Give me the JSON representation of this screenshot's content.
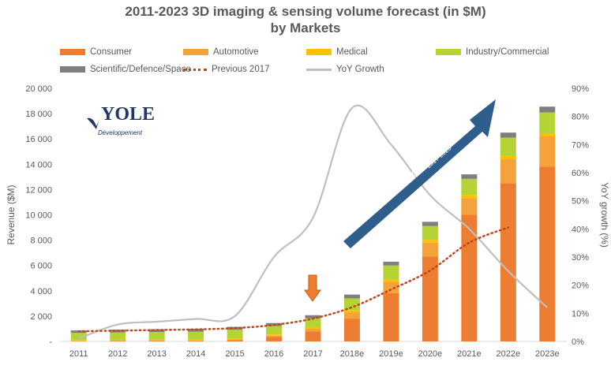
{
  "title_line1": "2011-2023 3D imaging & sensing volume forecast (in $M)",
  "title_line2": "by Markets",
  "logo": {
    "brand": "YOLE",
    "sub": "Développement"
  },
  "legend": [
    {
      "label": "Consumer",
      "color": "#ED7D31",
      "kind": "swatch"
    },
    {
      "label": "Automotive",
      "color": "#F4A23B",
      "kind": "swatch"
    },
    {
      "label": "Medical",
      "color": "#FFC000",
      "kind": "swatch"
    },
    {
      "label": "Industry/Commercial",
      "color": "#B5D334",
      "kind": "swatch"
    },
    {
      "label": "Scientific/Defence/Space",
      "color": "#7F7F7F",
      "kind": "swatch"
    },
    {
      "label": "Previous 2017",
      "color": "#C0461E",
      "kind": "dotted"
    },
    {
      "label": "YoY Growth",
      "color": "#BFBFBF",
      "kind": "line"
    }
  ],
  "annotation": {
    "cagr_main": "~ 44% CAGR",
    "cagr_sub": "2017-2023"
  },
  "chart_data": {
    "type": "bar",
    "stacked": true,
    "categories": [
      "2011",
      "2012",
      "2013",
      "2014",
      "2015",
      "2016",
      "2017",
      "2018e",
      "2019e",
      "2020e",
      "2021e",
      "2022e",
      "2023e"
    ],
    "series": [
      {
        "name": "Consumer",
        "color": "#ED7D31",
        "values": [
          20,
          30,
          30,
          40,
          100,
          350,
          800,
          1800,
          3800,
          6700,
          10000,
          12500,
          13800
        ]
      },
      {
        "name": "Automotive",
        "color": "#F4A23B",
        "values": [
          20,
          25,
          30,
          30,
          50,
          100,
          200,
          500,
          900,
          1100,
          1300,
          1900,
          2400
        ]
      },
      {
        "name": "Medical",
        "color": "#FFC000",
        "values": [
          70,
          75,
          80,
          80,
          90,
          100,
          120,
          150,
          200,
          220,
          250,
          250,
          250
        ]
      },
      {
        "name": "Industry/Commercial",
        "color": "#B5D334",
        "values": [
          560,
          580,
          600,
          620,
          680,
          670,
          700,
          950,
          1100,
          1100,
          1300,
          1450,
          1650
        ]
      },
      {
        "name": "Scientific/Defence/Space",
        "color": "#7F7F7F",
        "values": [
          200,
          220,
          220,
          230,
          230,
          230,
          250,
          300,
          300,
          330,
          350,
          400,
          450
        ]
      }
    ],
    "previous_2017": {
      "name": "Previous 2017",
      "color": "#C0461E",
      "values": [
        800,
        850,
        900,
        950,
        1050,
        1300,
        1800,
        2700,
        4100,
        5600,
        7800,
        9000,
        null
      ]
    },
    "yoy_growth": {
      "name": "YoY Growth",
      "color": "#BFBFBF",
      "values": [
        1,
        6,
        7,
        8,
        9,
        30,
        44,
        83,
        70,
        52,
        40,
        25,
        12
      ]
    },
    "ylabel": "Revenue ($M)",
    "ylabel_right": "YoY growth (%)",
    "ylim": [
      0,
      20000
    ],
    "ylim_right": [
      0,
      90
    ],
    "yticks": [
      "-",
      "2 000",
      "4 000",
      "6 000",
      "8 000",
      "10 000",
      "12 000",
      "14 000",
      "16 000",
      "18 000",
      "20 000"
    ],
    "yticks_right": [
      "0%",
      "10%",
      "20%",
      "30%",
      "40%",
      "50%",
      "60%",
      "70%",
      "80%",
      "90%"
    ],
    "highlight_category": "2017",
    "highlight_color": "#ED7D31",
    "arrow_color": "#2F5E8C"
  }
}
